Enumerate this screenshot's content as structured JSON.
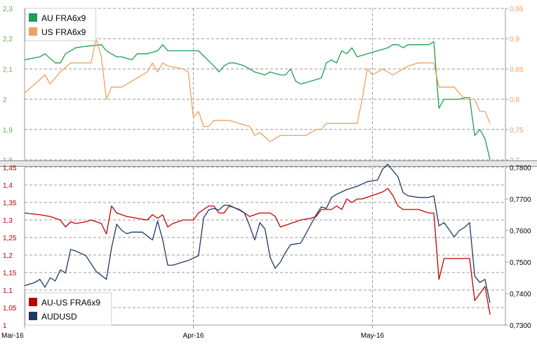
{
  "chart_data": [
    {
      "type": "line",
      "panel": "top",
      "x_ticks": [
        "Mar-16",
        "Apr-16",
        "May-16"
      ],
      "left_axis": {
        "ylim": [
          1.8,
          2.3
        ],
        "ticks": [
          "1,8",
          "1,9",
          "2",
          "2,1",
          "2,2",
          "2,3"
        ],
        "color": "#6aa84f"
      },
      "right_axis": {
        "ylim": [
          0.7,
          0.95
        ],
        "ticks": [
          "0,7",
          "0,75",
          "0,8",
          "0,85",
          "0,9",
          "0,95"
        ],
        "color": "#f0a060"
      },
      "legend": {
        "position": "top-left"
      },
      "grid": true,
      "series": [
        {
          "name": "AU FRA6x9",
          "axis": "left",
          "color": "#1aa050",
          "points": [
            [
              0,
              2.13
            ],
            [
              3,
              2.14
            ],
            [
              4,
              2.15
            ],
            [
              6,
              2.12
            ],
            [
              7,
              2.12
            ],
            [
              8,
              2.15
            ],
            [
              10,
              2.17
            ],
            [
              12,
              2.175
            ],
            [
              15,
              2.18
            ],
            [
              16,
              2.16
            ],
            [
              18,
              2.14
            ],
            [
              19,
              2.14
            ],
            [
              21,
              2.13
            ],
            [
              22,
              2.15
            ],
            [
              24,
              2.15
            ],
            [
              26,
              2.16
            ],
            [
              27,
              2.18
            ],
            [
              28,
              2.16
            ],
            [
              34,
              2.16
            ],
            [
              37,
              2.11
            ],
            [
              38,
              2.09
            ],
            [
              39,
              2.11
            ],
            [
              40,
              2.12
            ],
            [
              41,
              2.12
            ],
            [
              43,
              2.11
            ],
            [
              45,
              2.09
            ],
            [
              47,
              2.08
            ],
            [
              48,
              2.09
            ],
            [
              50,
              2.08
            ],
            [
              51,
              2.08
            ],
            [
              52,
              2.1
            ],
            [
              53,
              2.06
            ],
            [
              54,
              2.05
            ],
            [
              56,
              2.06
            ],
            [
              58,
              2.07
            ],
            [
              59,
              2.12
            ],
            [
              60,
              2.13
            ],
            [
              61,
              2.12
            ],
            [
              62,
              2.16
            ],
            [
              63,
              2.15
            ],
            [
              64,
              2.17
            ],
            [
              65,
              2.14
            ],
            [
              67,
              2.15
            ],
            [
              69,
              2.16
            ],
            [
              71,
              2.17
            ],
            [
              72,
              2.18
            ],
            [
              73,
              2.18
            ],
            [
              74,
              2.17
            ],
            [
              75,
              2.18
            ],
            [
              77,
              2.18
            ],
            [
              79,
              2.18
            ],
            [
              80,
              2.19
            ],
            [
              81,
              1.97
            ],
            [
              82,
              2.0
            ],
            [
              83,
              2.0
            ],
            [
              85,
              2.0
            ],
            [
              86,
              2.005
            ],
            [
              87,
              2.005
            ],
            [
              88,
              1.88
            ],
            [
              89,
              1.9
            ],
            [
              90,
              1.87
            ],
            [
              91,
              1.8
            ]
          ]
        },
        {
          "name": "US FRA6x9",
          "axis": "right",
          "color": "#f0a060",
          "points": [
            [
              0,
              0.81
            ],
            [
              2,
              0.825
            ],
            [
              4,
              0.84
            ],
            [
              5,
              0.825
            ],
            [
              7,
              0.845
            ],
            [
              9,
              0.86
            ],
            [
              10,
              0.86
            ],
            [
              13,
              0.86
            ],
            [
              14,
              0.9
            ],
            [
              15,
              0.87
            ],
            [
              16,
              0.8
            ],
            [
              17,
              0.82
            ],
            [
              18,
              0.82
            ],
            [
              19,
              0.82
            ],
            [
              21,
              0.83
            ],
            [
              24,
              0.845
            ],
            [
              25,
              0.86
            ],
            [
              26,
              0.845
            ],
            [
              27,
              0.86
            ],
            [
              28,
              0.855
            ],
            [
              31,
              0.85
            ],
            [
              32,
              0.845
            ],
            [
              33,
              0.77
            ],
            [
              34,
              0.78
            ],
            [
              35,
              0.755
            ],
            [
              36,
              0.755
            ],
            [
              37,
              0.765
            ],
            [
              40,
              0.765
            ],
            [
              42,
              0.76
            ],
            [
              44,
              0.755
            ],
            [
              45,
              0.74
            ],
            [
              46,
              0.745
            ],
            [
              48,
              0.73
            ],
            [
              50,
              0.74
            ],
            [
              54,
              0.74
            ],
            [
              55,
              0.74
            ],
            [
              57,
              0.75
            ],
            [
              58,
              0.75
            ],
            [
              59,
              0.76
            ],
            [
              61,
              0.76
            ],
            [
              64,
              0.76
            ],
            [
              65,
              0.76
            ],
            [
              66,
              0.8
            ],
            [
              67,
              0.85
            ],
            [
              68,
              0.84
            ],
            [
              70,
              0.85
            ],
            [
              72,
              0.84
            ],
            [
              74,
              0.85
            ],
            [
              75,
              0.855
            ],
            [
              77,
              0.86
            ],
            [
              79,
              0.86
            ],
            [
              80,
              0.86
            ],
            [
              81,
              0.82
            ],
            [
              82,
              0.82
            ],
            [
              84,
              0.82
            ],
            [
              85,
              0.81
            ],
            [
              86,
              0.8
            ],
            [
              88,
              0.8
            ],
            [
              89,
              0.78
            ],
            [
              90,
              0.78
            ],
            [
              91,
              0.76
            ]
          ]
        }
      ]
    },
    {
      "type": "line",
      "panel": "bottom",
      "x_ticks": [
        "Mar-16",
        "Apr-16",
        "May-16"
      ],
      "left_axis": {
        "ylim": [
          1.0,
          1.45
        ],
        "ticks": [
          "1",
          "1,05",
          "1,1",
          "1,15",
          "1,2",
          "1,25",
          "1,3",
          "1,35",
          "1,4",
          "1,45"
        ],
        "color": "#c00000"
      },
      "right_axis": {
        "ylim": [
          0.73,
          0.78
        ],
        "ticks": [
          "0,7300",
          "0,7400",
          "0,7500",
          "0,7600",
          "0,7700",
          "0,7800"
        ],
        "color": "#000000"
      },
      "legend": {
        "position": "bottom-left"
      },
      "grid": true,
      "series": [
        {
          "name": "AU-US FRA6x9",
          "axis": "left",
          "color": "#c00000",
          "points": [
            [
              0,
              1.32
            ],
            [
              3,
              1.315
            ],
            [
              5,
              1.31
            ],
            [
              7,
              1.3
            ],
            [
              8,
              1.28
            ],
            [
              9,
              1.295
            ],
            [
              10,
              1.29
            ],
            [
              12,
              1.295
            ],
            [
              13,
              1.3
            ],
            [
              15,
              1.29
            ],
            [
              16,
              1.26
            ],
            [
              17,
              1.34
            ],
            [
              18,
              1.32
            ],
            [
              20,
              1.31
            ],
            [
              22,
              1.305
            ],
            [
              24,
              1.3
            ],
            [
              25,
              1.315
            ],
            [
              26,
              1.305
            ],
            [
              27,
              1.315
            ],
            [
              28,
              1.28
            ],
            [
              29,
              1.29
            ],
            [
              30,
              1.295
            ],
            [
              31,
              1.3
            ],
            [
              33,
              1.3
            ],
            [
              34,
              1.32
            ],
            [
              35,
              1.33
            ],
            [
              36,
              1.34
            ],
            [
              37,
              1.34
            ],
            [
              38,
              1.32
            ],
            [
              39,
              1.32
            ],
            [
              40,
              1.34
            ],
            [
              41,
              1.335
            ],
            [
              42,
              1.33
            ],
            [
              44,
              1.31
            ],
            [
              46,
              1.32
            ],
            [
              47,
              1.32
            ],
            [
              48,
              1.32
            ],
            [
              49,
              1.31
            ],
            [
              50,
              1.28
            ],
            [
              52,
              1.29
            ],
            [
              54,
              1.3
            ],
            [
              56,
              1.305
            ],
            [
              57,
              1.31
            ],
            [
              58,
              1.33
            ],
            [
              59,
              1.33
            ],
            [
              60,
              1.33
            ],
            [
              61,
              1.34
            ],
            [
              62,
              1.33
            ],
            [
              63,
              1.36
            ],
            [
              64,
              1.35
            ],
            [
              65,
              1.36
            ],
            [
              66,
              1.36
            ],
            [
              68,
              1.37
            ],
            [
              70,
              1.38
            ],
            [
              71,
              1.39
            ],
            [
              72,
              1.37
            ],
            [
              73,
              1.34
            ],
            [
              74,
              1.33
            ],
            [
              77,
              1.33
            ],
            [
              79,
              1.32
            ],
            [
              80,
              1.32
            ],
            [
              81,
              1.13
            ],
            [
              82,
              1.19
            ],
            [
              83,
              1.19
            ],
            [
              85,
              1.19
            ],
            [
              86,
              1.19
            ],
            [
              87,
              1.19
            ],
            [
              88,
              1.07
            ],
            [
              89,
              1.09
            ],
            [
              90,
              1.11
            ],
            [
              91,
              1.03
            ]
          ]
        },
        {
          "name": "AUDUSD",
          "axis": "right",
          "color": "#1f3864",
          "points": [
            [
              0,
              0.7425
            ],
            [
              2,
              0.7435
            ],
            [
              3,
              0.7445
            ],
            [
              4,
              0.742
            ],
            [
              5,
              0.745
            ],
            [
              6,
              0.744
            ],
            [
              7,
              0.7475
            ],
            [
              8,
              0.7465
            ],
            [
              9,
              0.754
            ],
            [
              10,
              0.7535
            ],
            [
              12,
              0.752
            ],
            [
              14,
              0.747
            ],
            [
              16,
              0.7445
            ],
            [
              17,
              0.7545
            ],
            [
              18,
              0.762
            ],
            [
              19,
              0.76
            ],
            [
              20,
              0.759
            ],
            [
              21,
              0.7595
            ],
            [
              23,
              0.7595
            ],
            [
              25,
              0.757
            ],
            [
              26,
              0.763
            ],
            [
              27,
              0.757
            ],
            [
              28,
              0.749
            ],
            [
              29,
              0.749
            ],
            [
              30,
              0.7495
            ],
            [
              32,
              0.7505
            ],
            [
              34,
              0.752
            ],
            [
              35,
              0.764
            ],
            [
              36,
              0.7665
            ],
            [
              37,
              0.767
            ],
            [
              38,
              0.7665
            ],
            [
              39,
              0.768
            ],
            [
              40,
              0.768
            ],
            [
              42,
              0.7665
            ],
            [
              43,
              0.7655
            ],
            [
              44,
              0.7615
            ],
            [
              45,
              0.757
            ],
            [
              46,
              0.7625
            ],
            [
              47,
              0.7605
            ],
            [
              48,
              0.7515
            ],
            [
              49,
              0.748
            ],
            [
              50,
              0.75
            ],
            [
              51,
              0.753
            ],
            [
              52,
              0.7555
            ],
            [
              54,
              0.756
            ],
            [
              56,
              0.762
            ],
            [
              57,
              0.765
            ],
            [
              58,
              0.7675
            ],
            [
              59,
              0.767
            ],
            [
              60,
              0.7705
            ],
            [
              61,
              0.7715
            ],
            [
              63,
              0.773
            ],
            [
              65,
              0.774
            ],
            [
              67,
              0.7755
            ],
            [
              69,
              0.776
            ],
            [
              70,
              0.7795
            ],
            [
              71,
              0.781
            ],
            [
              72,
              0.779
            ],
            [
              73,
              0.777
            ],
            [
              74,
              0.772
            ],
            [
              75,
              0.771
            ],
            [
              77,
              0.7705
            ],
            [
              79,
              0.7705
            ],
            [
              80,
              0.771
            ],
            [
              81,
              0.7615
            ],
            [
              82,
              0.7625
            ],
            [
              84,
              0.758
            ],
            [
              85,
              0.76
            ],
            [
              86,
              0.761
            ],
            [
              87,
              0.7625
            ],
            [
              88,
              0.7455
            ],
            [
              89,
              0.7435
            ],
            [
              90,
              0.7445
            ],
            [
              91,
              0.737
            ]
          ]
        }
      ]
    }
  ]
}
